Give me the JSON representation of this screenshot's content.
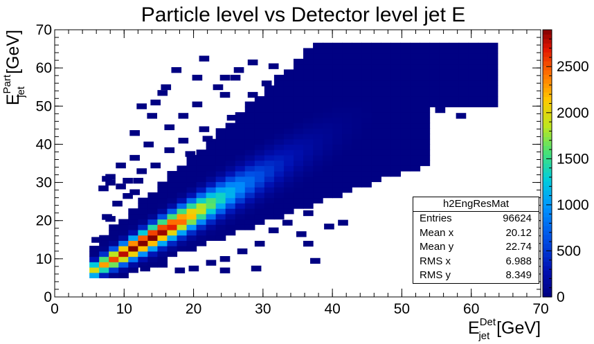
{
  "chart_data": {
    "type": "heatmap",
    "title": "Particle level vs Detector level jet E",
    "xlabel": {
      "base": "E",
      "sub": "jet",
      "sup": "Det",
      "unit": "[GeV]"
    },
    "ylabel": {
      "base": "E",
      "sub": "jet",
      "sup": "Part",
      "unit": "[GeV]"
    },
    "xlim": [
      0,
      70
    ],
    "ylim": [
      0,
      70
    ],
    "x_ticks": [
      "0",
      "10",
      "20",
      "30",
      "40",
      "50",
      "60",
      "70"
    ],
    "y_ticks": [
      "0",
      "10",
      "20",
      "30",
      "40",
      "50",
      "60",
      "70"
    ],
    "colorbar": {
      "range": [
        0,
        2900
      ],
      "ticks": [
        "0",
        "500",
        "1000",
        "1500",
        "2000",
        "2500"
      ]
    },
    "bin_width": 1.4,
    "density": {
      "ridge": {
        "slope": 1.0,
        "offset_at_10": 1.5,
        "offset_at_40": 2.6,
        "peak_count": 2850,
        "peak_at_x": 12.5
      },
      "noise_floor": 1
    },
    "outlier_bins": [
      [
        24.5,
        57.5
      ],
      [
        26.0,
        57.5
      ],
      [
        46.5,
        63.5
      ],
      [
        50.5,
        64.0
      ],
      [
        53.5,
        63.5
      ],
      [
        58.5,
        64.0
      ],
      [
        61.5,
        64.0
      ],
      [
        63.0,
        64.0
      ],
      [
        57.5,
        54.0
      ],
      [
        58.5,
        53.0
      ],
      [
        59.5,
        52.5
      ],
      [
        60.5,
        51.5
      ],
      [
        61.0,
        53.5
      ],
      [
        52.5,
        44.0
      ],
      [
        51.5,
        41.5
      ],
      [
        47.5,
        41.5
      ],
      [
        48.5,
        38.5
      ],
      [
        47.5,
        33.5
      ],
      [
        48.5,
        33.0
      ],
      [
        41.5,
        37.5
      ],
      [
        43.5,
        36.5
      ],
      [
        46.5,
        35.0
      ],
      [
        35.5,
        16.5
      ],
      [
        36.5,
        14.0
      ],
      [
        41.5,
        19.5
      ],
      [
        39.5,
        18.5
      ],
      [
        37.5,
        9.5
      ],
      [
        29.0,
        7.5
      ],
      [
        24.5,
        7.0
      ],
      [
        20.0,
        7.5
      ],
      [
        18.0,
        7.0
      ],
      [
        20.5,
        57.5
      ],
      [
        21.5,
        62.5
      ],
      [
        17.5,
        59.5
      ],
      [
        16.0,
        55.0
      ],
      [
        14.5,
        51.0
      ],
      [
        15.5,
        53.5
      ],
      [
        12.5,
        50.0
      ],
      [
        14.0,
        47.5
      ],
      [
        25.5,
        47.0
      ],
      [
        24.5,
        53.0
      ],
      [
        21.5,
        44.0
      ],
      [
        22.0,
        41.5
      ],
      [
        23.5,
        40.5
      ],
      [
        29.5,
        44.5
      ],
      [
        30.5,
        41.5
      ],
      [
        29.5,
        38.5
      ],
      [
        7.5,
        31.0
      ],
      [
        8.0,
        31.5
      ],
      [
        9.5,
        29.0
      ],
      [
        10.5,
        30.5
      ],
      [
        12.5,
        33.0
      ],
      [
        11.5,
        36.5
      ],
      [
        9.5,
        34.5
      ],
      [
        8.0,
        30.0
      ],
      [
        7.0,
        28.5
      ],
      [
        8.0,
        20.5
      ],
      [
        7.5,
        21.0
      ],
      [
        10.5,
        21.5
      ],
      [
        9.0,
        24.5
      ],
      [
        10.5,
        26.5
      ],
      [
        11.5,
        27.5
      ],
      [
        12.0,
        30.5
      ],
      [
        6.5,
        16.0
      ],
      [
        6.0,
        15.0
      ],
      [
        6.5,
        13.0
      ],
      [
        5.5,
        11.0
      ],
      [
        5.0,
        9.5
      ],
      [
        5.5,
        8.0
      ],
      [
        6.0,
        7.0
      ],
      [
        7.0,
        6.0
      ],
      [
        5.5,
        6.5
      ],
      [
        27.5,
        50.5
      ],
      [
        28.5,
        53.0
      ],
      [
        30.5,
        56.0
      ],
      [
        33.5,
        57.5
      ],
      [
        35.5,
        60.0
      ],
      [
        37.5,
        61.0
      ],
      [
        39.5,
        62.0
      ],
      [
        42.5,
        59.0
      ],
      [
        44.0,
        60.5
      ],
      [
        33.0,
        50.0
      ],
      [
        36.5,
        52.5
      ],
      [
        41.0,
        55.5
      ],
      [
        45.0,
        55.0
      ],
      [
        47.5,
        57.5
      ],
      [
        49.5,
        59.0
      ],
      [
        52.0,
        58.5
      ],
      [
        54.5,
        56.0
      ],
      [
        56.0,
        53.0
      ],
      [
        55.5,
        49.0
      ],
      [
        53.5,
        47.0
      ],
      [
        50.5,
        45.0
      ],
      [
        49.5,
        42.0
      ],
      [
        45.5,
        40.0
      ],
      [
        44.5,
        31.0
      ],
      [
        42.5,
        28.0
      ],
      [
        38.0,
        25.5
      ],
      [
        36.5,
        22.0
      ],
      [
        33.5,
        19.5
      ],
      [
        31.5,
        17.5
      ],
      [
        29.5,
        14.0
      ],
      [
        27.0,
        12.0
      ],
      [
        24.5,
        10.0
      ],
      [
        22.5,
        9.0
      ],
      [
        15.5,
        8.5
      ],
      [
        13.0,
        7.5
      ],
      [
        9.5,
        7.0
      ],
      [
        32.5,
        46.5
      ],
      [
        38.5,
        47.5
      ],
      [
        43.5,
        49.5
      ],
      [
        46.5,
        50.0
      ],
      [
        40.5,
        51.5
      ],
      [
        35.5,
        44.5
      ],
      [
        57.5,
        50.0
      ],
      [
        58.5,
        47.5
      ],
      [
        20.5,
        50.5
      ],
      [
        18.5,
        47.5
      ],
      [
        23.5,
        55.0
      ],
      [
        26.5,
        59.5
      ],
      [
        28.5,
        61.5
      ],
      [
        31.5,
        60.5
      ],
      [
        18.5,
        41.0
      ],
      [
        16.5,
        38.5
      ],
      [
        19.5,
        37.5
      ],
      [
        14.5,
        34.5
      ],
      [
        13.5,
        40.0
      ],
      [
        11.5,
        43.0
      ],
      [
        16.5,
        44.5
      ],
      [
        49.5,
        53.0
      ],
      [
        52.5,
        52.0
      ],
      [
        51.0,
        49.0
      ],
      [
        44.5,
        46.5
      ],
      [
        38.5,
        44.0
      ],
      [
        34.5,
        40.5
      ],
      [
        26.5,
        38.0
      ],
      [
        23.5,
        35.0
      ],
      [
        21.5,
        31.5
      ]
    ],
    "stats": {
      "name": "h2EngResMat",
      "rows": [
        {
          "label": "Entries",
          "value": "96624"
        },
        {
          "label": "Mean x",
          "value": "20.12"
        },
        {
          "label": "Mean y",
          "value": "22.74"
        },
        {
          "label": "RMS x",
          "value": "6.988"
        },
        {
          "label": "RMS y",
          "value": "8.349"
        }
      ]
    }
  }
}
